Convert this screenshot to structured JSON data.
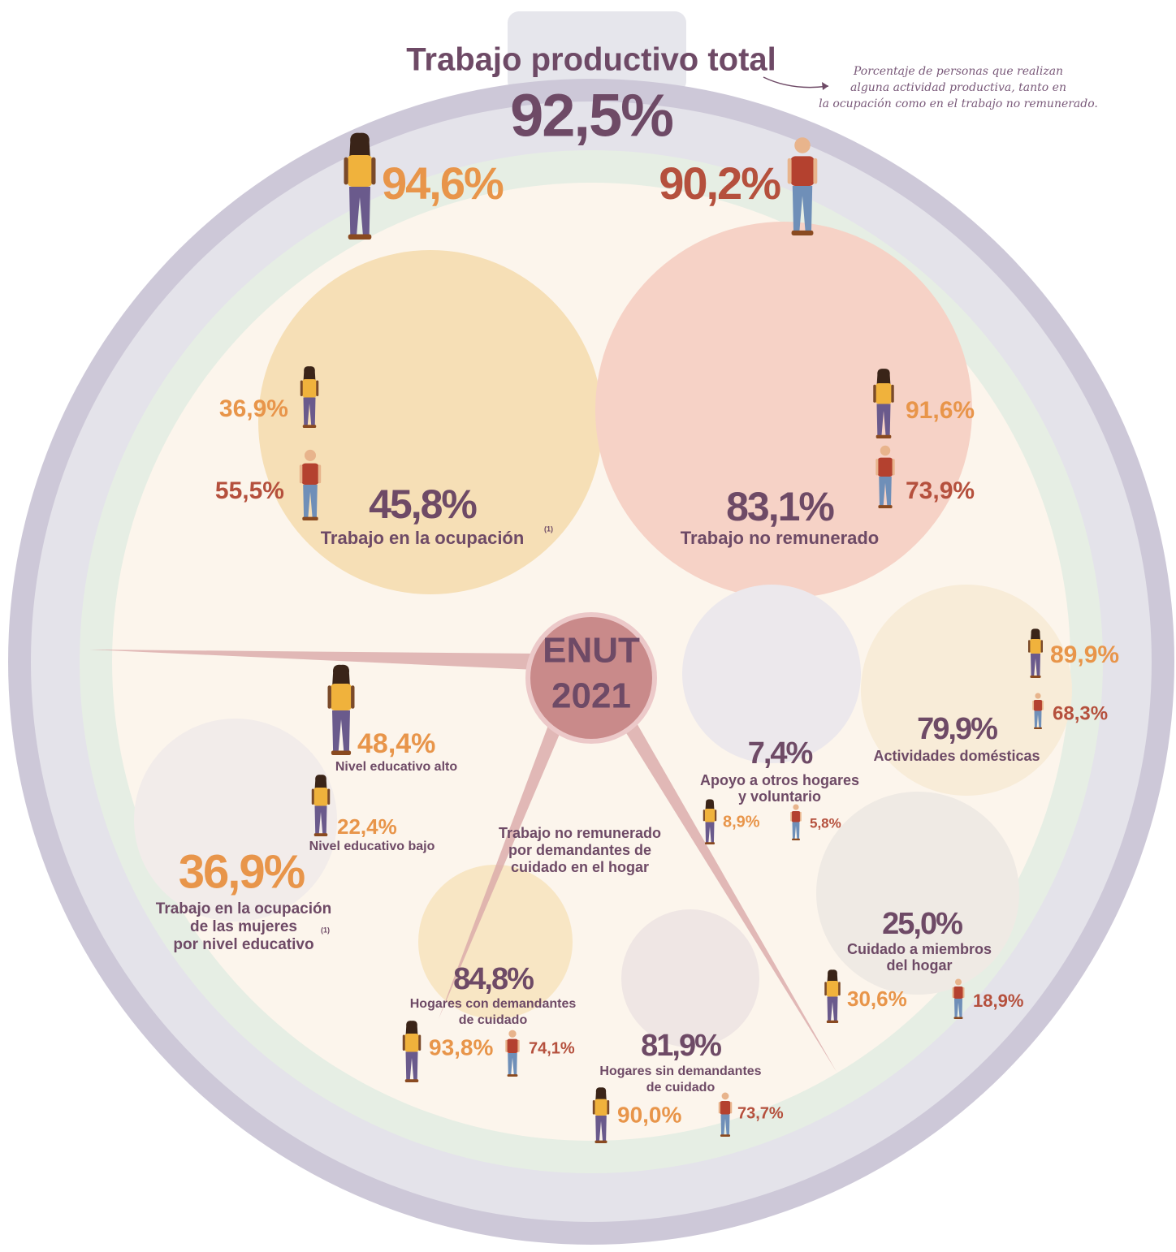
{
  "header": {
    "title": "Trabajo productivo total",
    "total": "92,5%",
    "women": "94,6%",
    "men": "90,2%",
    "note": [
      "Porcentaje de personas que realizan",
      "alguna actividad productiva, tanto en",
      "la ocupación como en el trabajo no remunerado."
    ]
  },
  "center": [
    "ENUT",
    "2021"
  ],
  "occupation": {
    "value": "45,8%",
    "label": "Trabajo en la ocupación",
    "footnote": "(1)",
    "women": "36,9%",
    "men": "55,5%"
  },
  "unpaid": {
    "value": "83,1%",
    "label": "Trabajo no remunerado",
    "women": "91,6%",
    "men": "73,9%"
  },
  "domestic": {
    "value": "79,9%",
    "label": "Actividades domésticas",
    "women": "89,9%",
    "men": "68,3%"
  },
  "support": {
    "value": "7,4%",
    "label": [
      "Apoyo a otros hogares",
      "y voluntario"
    ],
    "women": "8,9%",
    "men": "5,8%"
  },
  "care": {
    "value": "25,0%",
    "label": [
      "Cuidado a miembros",
      "del hogar"
    ],
    "women": "30,6%",
    "men": "18,9%"
  },
  "education": {
    "value": "36,9%",
    "label": [
      "Trabajo en la ocupación",
      "de las mujeres",
      "por nivel educativo"
    ],
    "footnote": "(1)",
    "high": {
      "value": "48,4%",
      "label": "Nivel educativo alto"
    },
    "low": {
      "value": "22,4%",
      "label": "Nivel educativo bajo"
    }
  },
  "demand": {
    "heading": [
      "Trabajo no remunerado",
      "por demandantes de",
      "cuidado en el hogar"
    ],
    "with": {
      "value": "84,8%",
      "label": [
        "Hogares con demandantes",
        "de cuidado"
      ],
      "women": "93,8%",
      "men": "74,1%"
    },
    "without": {
      "value": "81,9%",
      "label": [
        "Hogares sin demandantes",
        "de cuidado"
      ],
      "women": "90,0%",
      "men": "73,7%"
    }
  }
}
